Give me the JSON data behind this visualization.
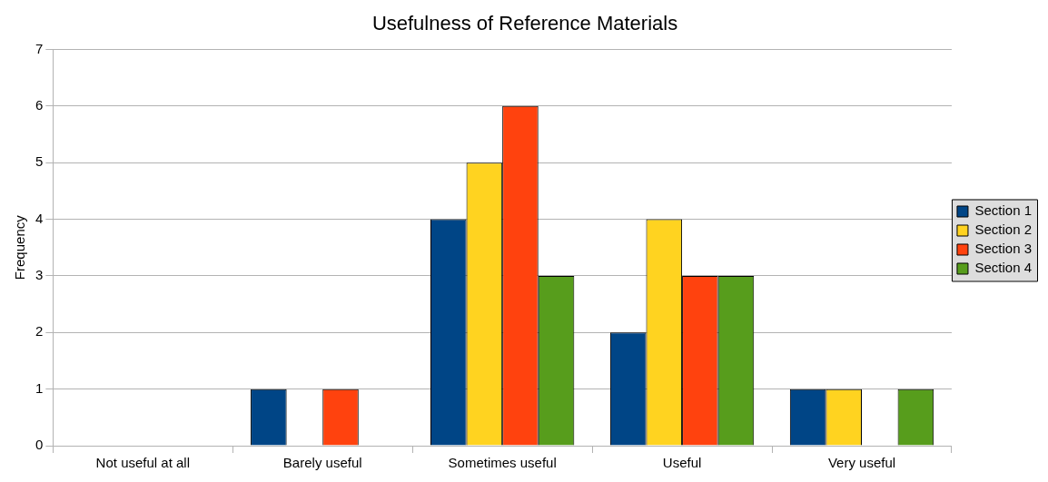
{
  "chart_data": {
    "type": "bar",
    "title": "Usefulness of Reference Materials",
    "ylabel": "Frequency",
    "categories": [
      "Not useful at all",
      "Barely useful",
      "Sometimes useful",
      "Useful",
      "Very useful"
    ],
    "series": [
      {
        "name": "Section 1",
        "color": "#004586",
        "values": [
          0,
          1,
          4,
          2,
          1
        ]
      },
      {
        "name": "Section 2",
        "color": "#ffd320",
        "values": [
          0,
          0,
          5,
          4,
          1
        ]
      },
      {
        "name": "Section 3",
        "color": "#ff420e",
        "values": [
          0,
          1,
          6,
          3,
          0
        ]
      },
      {
        "name": "Section 4",
        "color": "#579d1c",
        "values": [
          0,
          0,
          3,
          3,
          1
        ]
      }
    ],
    "ylim": [
      0,
      7
    ],
    "yticks": [
      0,
      1,
      2,
      3,
      4,
      5,
      6,
      7
    ],
    "grid": "y",
    "legend": "right"
  }
}
